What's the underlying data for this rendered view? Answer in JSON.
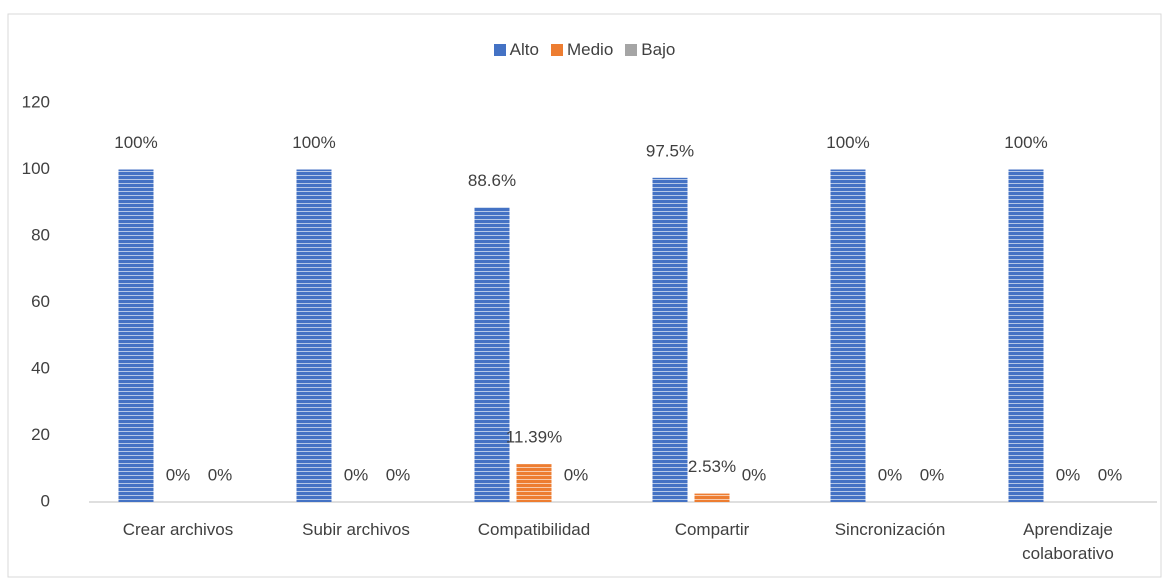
{
  "chart_data": {
    "type": "bar",
    "categories": [
      "Crear archivos",
      "Subir archivos",
      "Compatibilidad",
      "Compartir",
      "Sincronización",
      "Aprendizaje colaborativo"
    ],
    "series": [
      {
        "name": "Alto",
        "color": "#4472c4",
        "values": [
          100,
          100,
          88.6,
          97.5,
          100,
          100
        ],
        "value_labels": [
          "100%",
          "100%",
          "88.6%",
          "97.5%",
          "100%",
          "100%"
        ]
      },
      {
        "name": "Medio",
        "color": "#ed7d31",
        "values": [
          0,
          0,
          11.39,
          2.53,
          0,
          0
        ],
        "value_labels": [
          "0%",
          "0%",
          "11.39%",
          "2.53%",
          "0%",
          "0%"
        ]
      },
      {
        "name": "Bajo",
        "color": "#a5a5a5",
        "values": [
          0,
          0,
          0,
          0,
          0,
          0
        ],
        "value_labels": [
          "0%",
          "0%",
          "0%",
          "0%",
          "0%",
          "0%"
        ]
      }
    ],
    "ylim": [
      0,
      120
    ],
    "yticks": [
      0,
      20,
      40,
      60,
      80,
      100,
      120
    ],
    "grid": false,
    "legend": "top"
  }
}
